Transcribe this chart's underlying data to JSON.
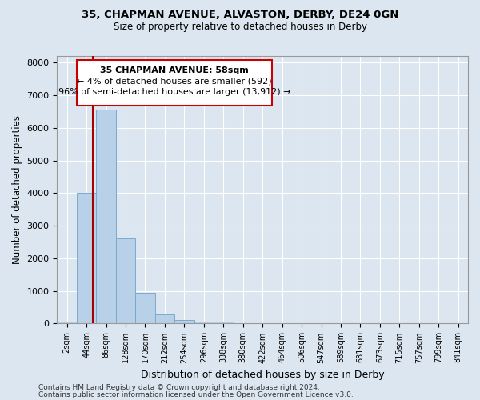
{
  "title1": "35, CHAPMAN AVENUE, ALVASTON, DERBY, DE24 0GN",
  "title2": "Size of property relative to detached houses in Derby",
  "xlabel": "Distribution of detached houses by size in Derby",
  "ylabel": "Number of detached properties",
  "bar_color": "#b8d0e8",
  "bar_edge_color": "#7aaacb",
  "background_color": "#dce6f0",
  "fig_background_color": "#dce6f0",
  "tick_labels": [
    "2sqm",
    "44sqm",
    "86sqm",
    "128sqm",
    "170sqm",
    "212sqm",
    "254sqm",
    "296sqm",
    "338sqm",
    "380sqm",
    "422sqm",
    "464sqm",
    "506sqm",
    "547sqm",
    "589sqm",
    "631sqm",
    "673sqm",
    "715sqm",
    "757sqm",
    "799sqm",
    "841sqm"
  ],
  "bar_values": [
    50,
    4000,
    6550,
    2600,
    950,
    280,
    100,
    65,
    65,
    0,
    0,
    0,
    0,
    0,
    0,
    0,
    0,
    0,
    0,
    0,
    0
  ],
  "ylim": [
    0,
    8200
  ],
  "yticks": [
    0,
    1000,
    2000,
    3000,
    4000,
    5000,
    6000,
    7000,
    8000
  ],
  "property_line_color": "#aa0000",
  "annotation_line1": "35 CHAPMAN AVENUE: 58sqm",
  "annotation_line2": "← 4% of detached houses are smaller (592)",
  "annotation_line3": "96% of semi-detached houses are larger (13,912) →",
  "annotation_box_color": "#cc0000",
  "footnote1": "Contains HM Land Registry data © Crown copyright and database right 2024.",
  "footnote2": "Contains public sector information licensed under the Open Government Licence v3.0."
}
